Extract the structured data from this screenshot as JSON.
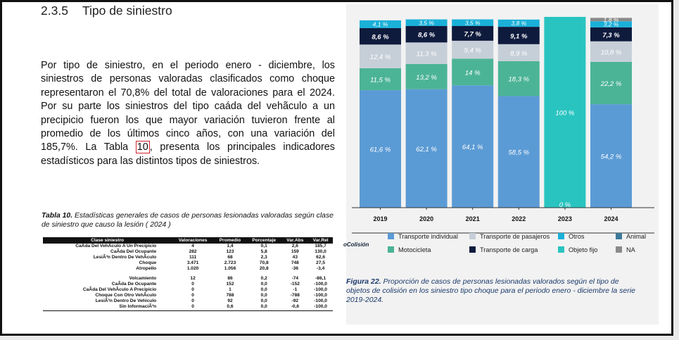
{
  "section": {
    "number": "2.3.5",
    "title": "Tipo de siniestro"
  },
  "paragraph": {
    "before_ref": "Por tipo de siniestro, en el periodo enero - diciembre, los siniestros de personas valoradas clasificados como choque representaron el 70,8% del total de valoraciones para el 2024. Por su parte los siniestros del tipo caáda del vehãculo a un precipicio fueron los que mayor variación tuvieron frente al promedio de los últimos cinco años, con una variación del 185,7%. La Tabla ",
    "ref": "10",
    "after_ref": ", presenta los principales indicadores estadísticos para las distintos tipos de siniestros."
  },
  "table": {
    "caption_label": "Tabla 10.",
    "caption_text": "Estadísticas generales de casos de personas lesionadas valoradas según clase de siniestro que causo la lesión ( 2024 )",
    "headers": [
      "Clase siniestro",
      "Valoraciones",
      "Promedio",
      "Porcentaje",
      "Var.Abs",
      "Var.Rel"
    ],
    "rows": [
      [
        "CaÃda Del VehÃculo A Un Precipicio",
        "4",
        "1,4",
        "0,1",
        "2,6",
        "185,7"
      ],
      [
        "CaÃda Del Ocupante",
        "282",
        "123",
        "5,8",
        "159",
        "130,0"
      ],
      [
        "LesiÃ³n Dentro De VehÃculo",
        "111",
        "68",
        "2,3",
        "43",
        "62,6"
      ],
      [
        "Choque",
        "3.471",
        "2.723",
        "70,8",
        "748",
        "27,5"
      ],
      [
        "Atropello",
        "1.020",
        "1.056",
        "20,8",
        "-36",
        "-3,4"
      ],
      [
        "Volcamiento",
        "12",
        "86",
        "0,2",
        "-74",
        "-86,1"
      ],
      [
        "CaÃda De Ocupante",
        "0",
        "152",
        "0,0",
        "-152",
        "-100,0"
      ],
      [
        "CaÃda Del VehÃculo A Precipicio",
        "0",
        "1",
        "0,0",
        "-1",
        "-100,0"
      ],
      [
        "Choque Con Otro VehÃculo",
        "0",
        "788",
        "0,0",
        "-788",
        "-100,0"
      ],
      [
        "LesiÃ³n Dentro De Vehiculo",
        "0",
        "92",
        "0,0",
        "-92",
        "-100,0"
      ],
      [
        "Sin InformaciÃ³n",
        "0",
        "0,6",
        "0,0",
        "-0,6",
        "-100,0"
      ]
    ]
  },
  "figure": {
    "caption_label": "Figura 22.",
    "caption_text": "Proporción de casos de personas lesionadas valorados según el tipo de objetos de colisión en los siniestro tipo choque para el periodo enero - diciembre la serie 2019-2024.",
    "legend_side_label": "oColisión"
  },
  "chart_data": {
    "type": "bar",
    "stacked": "percent",
    "categories": [
      "2019",
      "2020",
      "2021",
      "2022",
      "2023",
      "2024"
    ],
    "ylim": [
      0,
      100
    ],
    "series": [
      {
        "name": "Transporte individual",
        "color": "#5b9bd5",
        "values": [
          61.6,
          62.1,
          64.1,
          58.5,
          0,
          54.2
        ],
        "labels": [
          "61,6 %",
          "62,1 %",
          "64,1 %",
          "58,5 %",
          "0 %",
          "54,2 %"
        ]
      },
      {
        "name": "Motocicleta",
        "color": "#4cb496",
        "values": [
          11.5,
          13.2,
          14.0,
          18.3,
          0,
          22.2
        ],
        "labels": [
          "11,5 %",
          "13,2 %",
          "14 %",
          "18,3 %",
          "",
          "22,2 %"
        ]
      },
      {
        "name": "Transporte de pasajeros",
        "color": "#c6cfd8",
        "values": [
          12.4,
          11.3,
          9.4,
          8.9,
          0,
          10.8
        ],
        "labels": [
          "12,4 %",
          "11,3 %",
          "9,4 %",
          "8,9 %",
          "",
          "10,8 %"
        ]
      },
      {
        "name": "Transporte de carga",
        "color": "#0f1b3d",
        "values": [
          8.6,
          8.6,
          7.7,
          9.1,
          0,
          7.3
        ],
        "labels": [
          "8,6 %",
          "8,6 %",
          "7,7 %",
          "9,1 %",
          "",
          "7,3 %"
        ]
      },
      {
        "name": "Otros",
        "color": "#1ab0d8",
        "values": [
          4.1,
          3.5,
          3.5,
          3.8,
          0,
          3.2
        ],
        "labels": [
          "4,1 %",
          "3,5 %",
          "3,5 %",
          "3,8 %",
          "",
          "3,2 %"
        ]
      },
      {
        "name": "Objeto fijo",
        "color": "#29c4c0",
        "values": [
          0,
          0,
          0,
          0,
          100,
          0
        ],
        "labels": [
          "",
          "",
          "",
          "",
          "100 %",
          ""
        ]
      },
      {
        "name": "Animal",
        "color": "#3d7a99",
        "values": [
          0,
          0,
          0,
          0,
          0,
          0
        ],
        "labels": [
          "",
          "",
          "",
          "",
          "",
          ""
        ]
      },
      {
        "name": "NA",
        "color": "#8a8a8a",
        "values": [
          0,
          0,
          0,
          0,
          0,
          1.8
        ],
        "labels": [
          "",
          "",
          "",
          "",
          "",
          "1,8 %"
        ]
      }
    ],
    "legend": [
      {
        "name": "Transporte individual",
        "color": "#5b9bd5"
      },
      {
        "name": "Transporte de pasajeros",
        "color": "#c6cfd8"
      },
      {
        "name": "Otros",
        "color": "#1ab0d8"
      },
      {
        "name": "Animal",
        "color": "#3d7a99"
      },
      {
        "name": "Motocicleta",
        "color": "#4cb496"
      },
      {
        "name": "Transporte de carga",
        "color": "#0f1b3d"
      },
      {
        "name": "Objeto fijo",
        "color": "#29c4c0"
      },
      {
        "name": "NA",
        "color": "#8a8a8a"
      }
    ]
  }
}
